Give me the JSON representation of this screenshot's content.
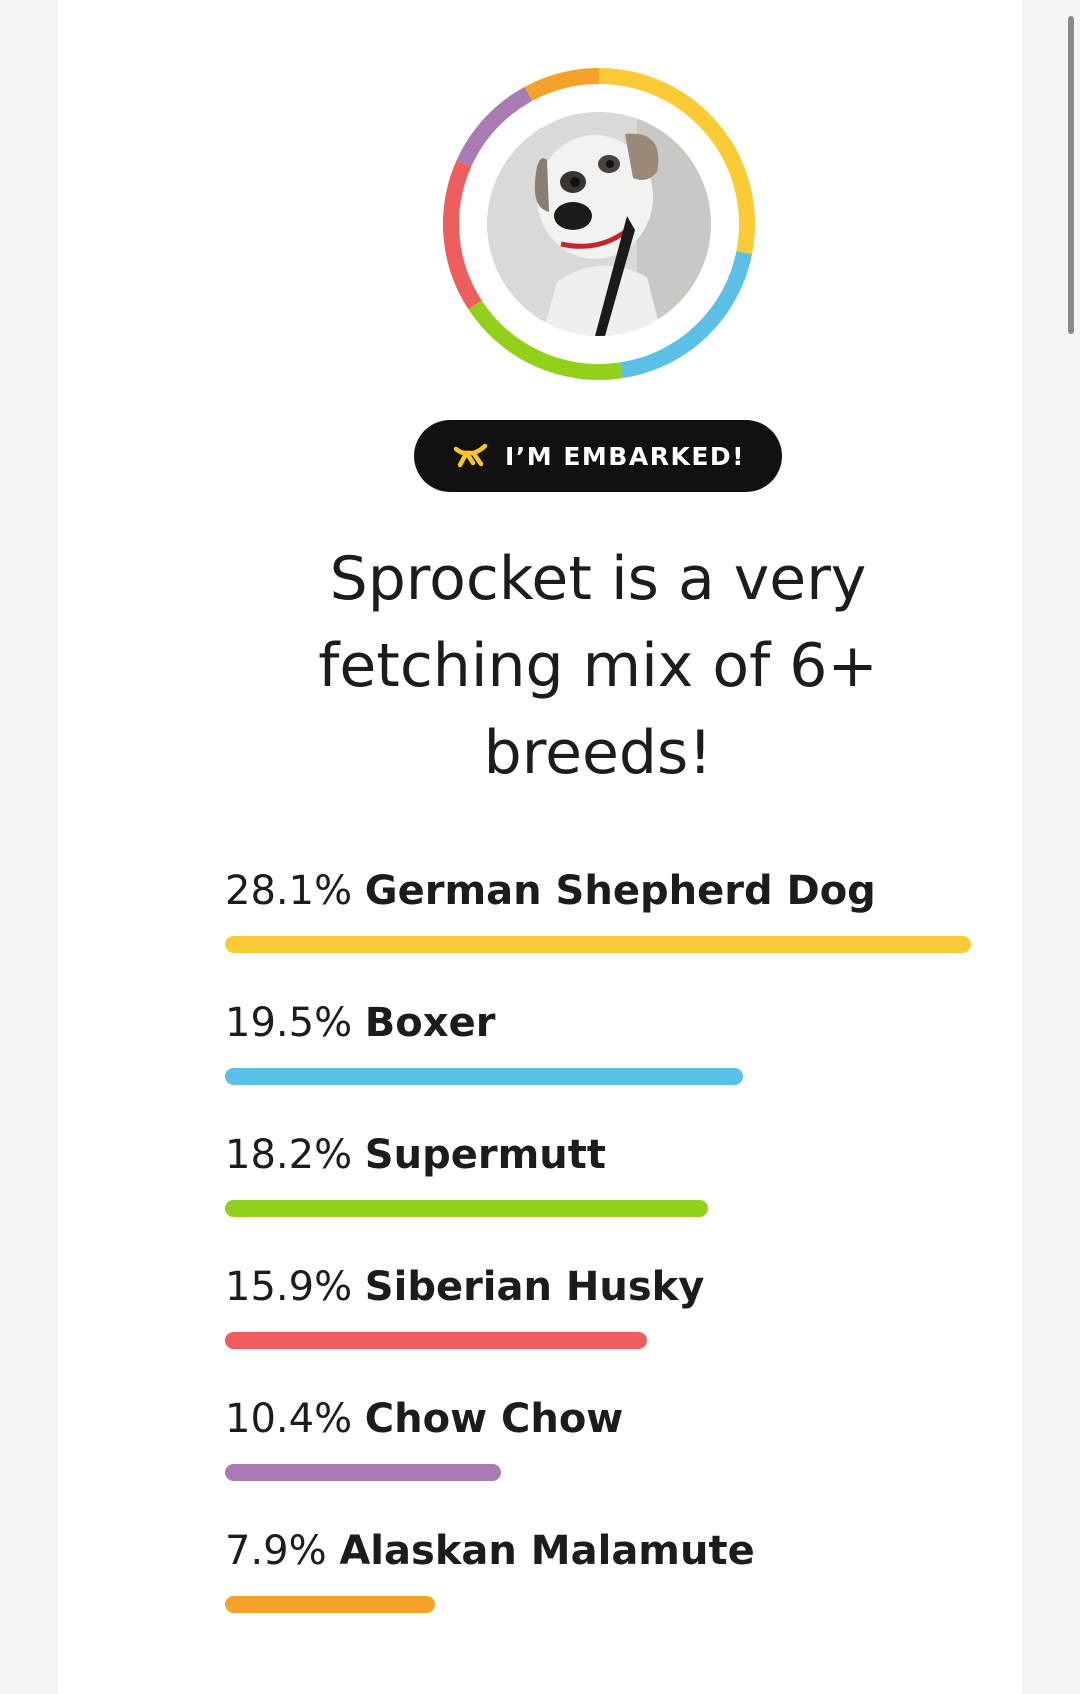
{
  "badge": {
    "label": "I’M EMBARKED!",
    "icon": "balloon-dog-icon",
    "icon_color": "#f6c928"
  },
  "headline": "Sprocket is a very fetching mix of 6+ breeds!",
  "breeds": [
    {
      "percent_label": "28.1%",
      "percent": 28.1,
      "name": "German Shepherd Dog",
      "color": "#fbcb36"
    },
    {
      "percent_label": "19.5%",
      "percent": 19.5,
      "name": "Boxer",
      "color": "#5cc0e6"
    },
    {
      "percent_label": "18.2%",
      "percent": 18.2,
      "name": "Supermutt",
      "color": "#93d01b"
    },
    {
      "percent_label": "15.9%",
      "percent": 15.9,
      "name": "Siberian Husky",
      "color": "#ef5e5e"
    },
    {
      "percent_label": "10.4%",
      "percent": 10.4,
      "name": "Chow Chow",
      "color": "#a97bb2"
    },
    {
      "percent_label": "7.9%",
      "percent": 7.9,
      "name": "Alaskan Malamute",
      "color": "#f5a22a"
    }
  ],
  "max_percent": 28.1,
  "ring": {
    "segments": [
      {
        "name": "German Shepherd Dog",
        "percent": 28.1,
        "color": "#fbcb36"
      },
      {
        "name": "Boxer",
        "percent": 19.5,
        "color": "#5cc0e6"
      },
      {
        "name": "Supermutt",
        "percent": 18.2,
        "color": "#93d01b"
      },
      {
        "name": "Siberian Husky",
        "percent": 15.9,
        "color": "#ef5e5e"
      },
      {
        "name": "Chow Chow",
        "percent": 10.4,
        "color": "#a97bb2"
      },
      {
        "name": "Alaskan Malamute",
        "percent": 7.9,
        "color": "#f5a22a"
      }
    ]
  }
}
